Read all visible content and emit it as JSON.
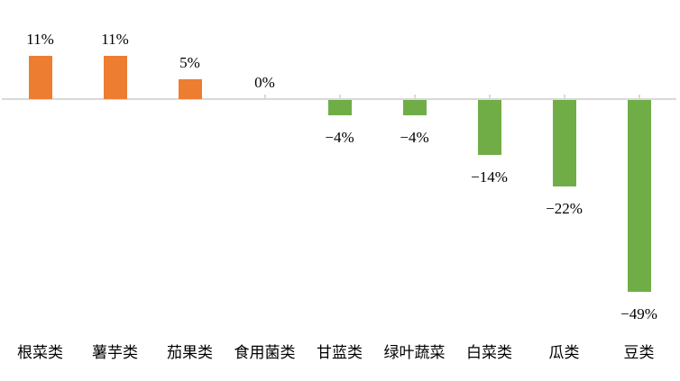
{
  "chart_data": {
    "type": "bar",
    "title": "",
    "xlabel": "",
    "ylabel": "",
    "categories": [
      "根菜类",
      "薯芋类",
      "茄果类",
      "食用菌类",
      "甘蓝类",
      "绿叶蔬菜",
      "白菜类",
      "瓜类",
      "豆类"
    ],
    "values": [
      11,
      11,
      5,
      0,
      -4,
      -4,
      -14,
      -22,
      -49
    ],
    "labels": [
      "11%",
      "11%",
      "5%",
      "0%",
      "−4%",
      "−4%",
      "−14%",
      "−22%",
      "−49%"
    ],
    "unit": "%",
    "ylim": [
      -55,
      15
    ],
    "grid": false,
    "legend": null,
    "colors": {
      "positive_bar": "#ED7D31",
      "negative_bar": "#70AD47",
      "axis": "#D9D9D9",
      "text": "#000000",
      "background": "#FFFFFF"
    }
  }
}
